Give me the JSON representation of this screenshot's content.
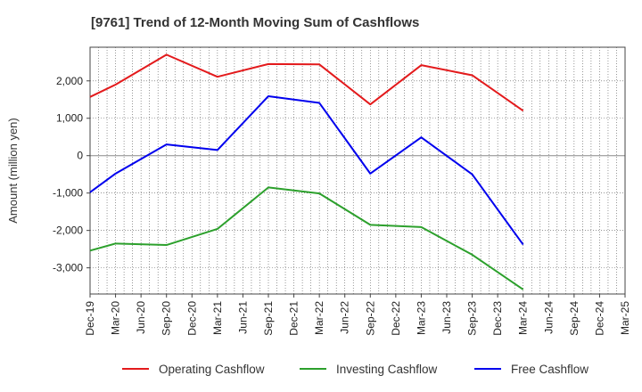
{
  "chart_data": {
    "type": "line",
    "title": "[9761]  Trend of 12-Month Moving Sum of Cashflows",
    "ylabel": "Amount (million yen)",
    "xlabel": "",
    "ylim": [
      -3700,
      2900
    ],
    "yticks": [
      -3000,
      -2000,
      -1000,
      0,
      1000,
      2000
    ],
    "ytick_labels": [
      "-3,000",
      "-2,000",
      "-1,000",
      "0",
      "1,000",
      "2,000"
    ],
    "categories": [
      "Dec-19",
      "Mar-20",
      "Jun-20",
      "Sep-20",
      "Dec-20",
      "Mar-21",
      "Jun-21",
      "Sep-21",
      "Dec-21",
      "Mar-22",
      "Jun-22",
      "Sep-22",
      "Dec-22",
      "Mar-23",
      "Jun-23",
      "Sep-23",
      "Dec-23",
      "Mar-24",
      "Jun-24",
      "Sep-24",
      "Dec-24",
      "Mar-25"
    ],
    "grid": true,
    "legend_position": "bottom",
    "series": [
      {
        "name": "Operating Cashflow",
        "color": "#e31a1c",
        "values": [
          1570,
          1900,
          null,
          2700,
          null,
          2110,
          null,
          2450,
          null,
          2440,
          null,
          1370,
          null,
          2420,
          null,
          2150,
          null,
          1200,
          null,
          null,
          null,
          null
        ]
      },
      {
        "name": "Investing Cashflow",
        "color": "#2ca02c",
        "values": [
          -2540,
          -2350,
          null,
          -2390,
          null,
          -1960,
          null,
          -850,
          null,
          -1010,
          null,
          -1850,
          null,
          -1910,
          null,
          -2650,
          null,
          -3580,
          null,
          null,
          null,
          null
        ]
      },
      {
        "name": "Free Cashflow",
        "color": "#0000ee",
        "values": [
          -980,
          -480,
          null,
          300,
          null,
          150,
          null,
          1590,
          null,
          1410,
          null,
          -480,
          null,
          490,
          null,
          -500,
          null,
          -2380,
          null,
          null,
          null,
          null
        ]
      }
    ]
  }
}
